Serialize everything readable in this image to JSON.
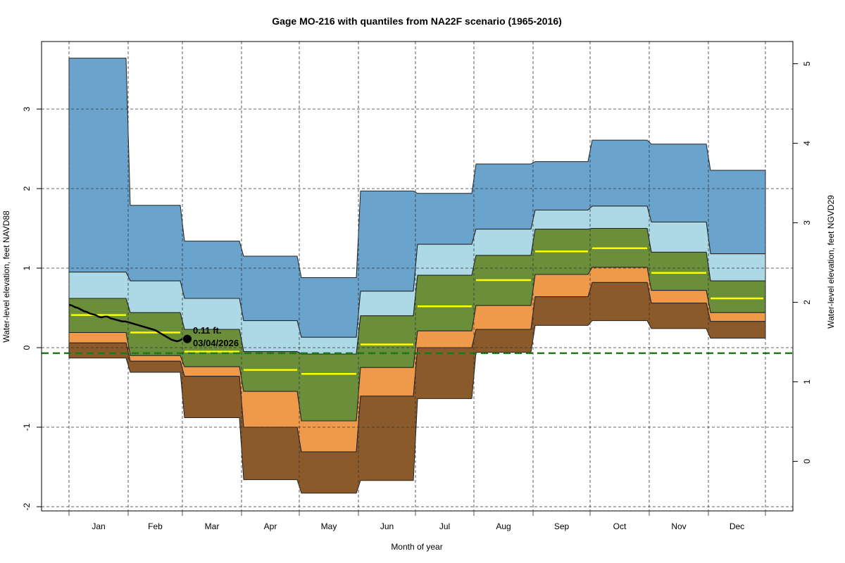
{
  "chart_data": {
    "type": "area",
    "title": "Gage MO-216 with quantiles from NA22F scenario (1965-2016)",
    "xlabel": "Month of year",
    "ylabel": "Water-level elevation, feet NAVD88",
    "ylabel_right": "Water-level elevation, feet NGVD29",
    "ylim": [
      -2.05,
      3.85
    ],
    "yticks": [
      -2,
      -1,
      0,
      1,
      2,
      3
    ],
    "ytick_labels": [
      "-2",
      "-1",
      "0",
      "1",
      "2",
      "3"
    ],
    "right_axis_offset": 1.43,
    "yticks_right": [
      0,
      1,
      2,
      3,
      4,
      5
    ],
    "ytick_right_labels": [
      "0",
      "1",
      "2",
      "3",
      "4",
      "5"
    ],
    "grid": true,
    "categories": [
      "Jan",
      "Feb",
      "Mar",
      "Apr",
      "May",
      "Jun",
      "Jul",
      "Aug",
      "Sep",
      "Oct",
      "Nov",
      "Dec"
    ],
    "bands": [
      {
        "name": "max-to-q90",
        "color": "#6aa4cc",
        "lower": [
          0.95,
          0.84,
          0.62,
          0.34,
          0.13,
          0.71,
          1.3,
          1.49,
          1.73,
          1.78,
          1.58,
          1.18
        ],
        "upper": [
          3.64,
          1.79,
          1.34,
          1.15,
          0.88,
          1.97,
          1.94,
          2.31,
          2.34,
          2.61,
          2.56,
          2.23
        ]
      },
      {
        "name": "q90-to-q75",
        "color": "#add8e6",
        "lower": [
          0.62,
          0.44,
          0.23,
          -0.05,
          -0.08,
          0.4,
          0.91,
          1.16,
          1.49,
          1.5,
          1.2,
          0.84
        ],
        "upper": [
          0.95,
          0.84,
          0.62,
          0.34,
          0.13,
          0.71,
          1.3,
          1.49,
          1.73,
          1.78,
          1.58,
          1.18
        ]
      },
      {
        "name": "q75-to-q25",
        "color": "#6b8e3a",
        "lower": [
          0.19,
          -0.1,
          -0.24,
          -0.55,
          -0.92,
          -0.25,
          0.21,
          0.53,
          0.92,
          1.01,
          0.72,
          0.44
        ],
        "upper": [
          0.62,
          0.44,
          0.23,
          -0.05,
          -0.08,
          0.4,
          0.91,
          1.16,
          1.49,
          1.5,
          1.2,
          0.84
        ]
      },
      {
        "name": "q25-to-q10",
        "color": "#ef9a4a",
        "lower": [
          0.06,
          -0.17,
          -0.36,
          -1.0,
          -1.31,
          -0.61,
          0.0,
          0.23,
          0.64,
          0.82,
          0.56,
          0.33
        ],
        "upper": [
          0.19,
          -0.1,
          -0.24,
          -0.55,
          -0.92,
          -0.25,
          0.21,
          0.53,
          0.92,
          1.01,
          0.72,
          0.44
        ]
      },
      {
        "name": "q10-to-min",
        "color": "#8b5a2b",
        "lower": [
          -0.13,
          -0.31,
          -0.88,
          -1.66,
          -1.83,
          -1.67,
          -0.64,
          -0.06,
          0.28,
          0.34,
          0.24,
          0.12
        ],
        "upper": [
          0.06,
          -0.17,
          -0.36,
          -1.0,
          -1.31,
          -0.61,
          0.0,
          0.23,
          0.64,
          0.82,
          0.56,
          0.33
        ]
      }
    ],
    "median": {
      "name": "median",
      "color": "#ffff00",
      "values": [
        0.41,
        0.19,
        -0.05,
        -0.28,
        -0.33,
        0.04,
        0.52,
        0.85,
        1.21,
        1.25,
        0.94,
        0.62
      ]
    },
    "reference_line": {
      "value": -0.07,
      "color": "#1a7a1a",
      "style": "dashed"
    },
    "observed": {
      "color": "#000000",
      "points": [
        [
          0.0,
          0.54
        ],
        [
          0.05,
          0.53
        ],
        [
          0.1,
          0.51
        ],
        [
          0.15,
          0.5
        ],
        [
          0.2,
          0.48
        ],
        [
          0.25,
          0.46
        ],
        [
          0.3,
          0.45
        ],
        [
          0.35,
          0.43
        ],
        [
          0.4,
          0.42
        ],
        [
          0.45,
          0.41
        ],
        [
          0.5,
          0.39
        ],
        [
          0.55,
          0.38
        ],
        [
          0.6,
          0.39
        ],
        [
          0.65,
          0.39
        ],
        [
          0.7,
          0.37
        ],
        [
          0.75,
          0.36
        ],
        [
          0.8,
          0.35
        ],
        [
          0.85,
          0.34
        ],
        [
          0.9,
          0.33
        ],
        [
          0.95,
          0.33
        ],
        [
          1.0,
          0.32
        ],
        [
          1.05,
          0.31
        ],
        [
          1.1,
          0.3
        ],
        [
          1.15,
          0.29
        ],
        [
          1.2,
          0.28
        ],
        [
          1.25,
          0.27
        ],
        [
          1.3,
          0.26
        ],
        [
          1.35,
          0.25
        ],
        [
          1.4,
          0.24
        ],
        [
          1.45,
          0.23
        ],
        [
          1.5,
          0.22
        ],
        [
          1.55,
          0.2
        ],
        [
          1.6,
          0.18
        ],
        [
          1.65,
          0.16
        ],
        [
          1.7,
          0.14
        ],
        [
          1.75,
          0.12
        ],
        [
          1.8,
          0.1
        ],
        [
          1.85,
          0.09
        ],
        [
          1.9,
          0.08
        ],
        [
          1.95,
          0.09
        ],
        [
          2.0,
          0.11
        ]
      ],
      "last_value": 0.11,
      "annotation_value": "0.11 ft.",
      "annotation_date": "03/04/2026"
    }
  }
}
